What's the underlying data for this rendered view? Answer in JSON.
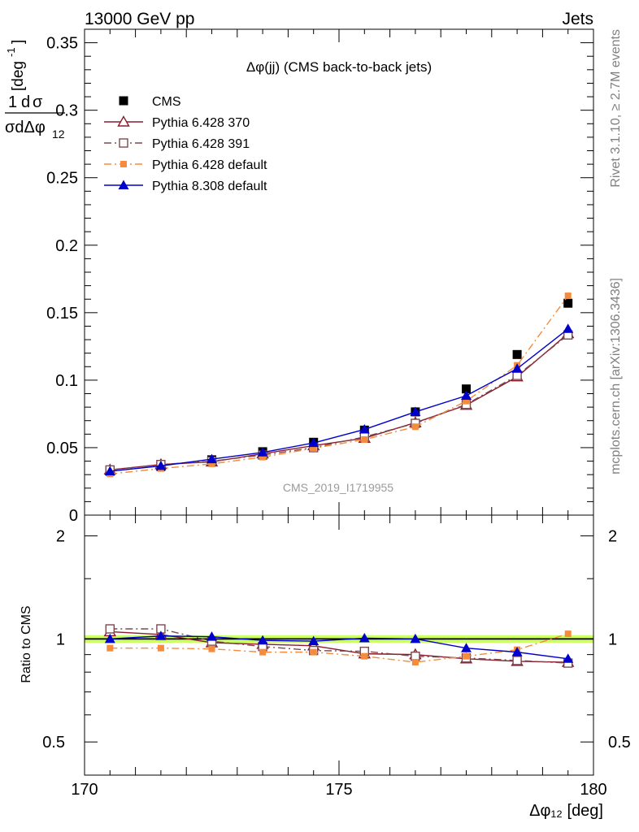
{
  "header": {
    "left": "13000 GeV pp",
    "right": "Jets"
  },
  "side": {
    "rivet": "Rivet 3.1.10, ≥ 2.7M events",
    "mcplots": "mcplots.cern.ch [arXiv:1306.3436]"
  },
  "chart_data": [
    {
      "type": "scatter",
      "title": "Δφ(jj) (CMS back-to-back jets)",
      "watermark": "CMS_2019_I1719955",
      "ylabel": "1/σ dσ/dΔφ₁₂ [deg⁻¹]",
      "ylim": [
        0,
        0.36
      ],
      "xlim": [
        170,
        180
      ],
      "ytick_labels": [
        "0",
        "0.05",
        "0.1",
        "0.15",
        "0.2",
        "0.25",
        "0.3",
        "0.35"
      ],
      "ytick_values": [
        0,
        0.05,
        0.1,
        0.15,
        0.2,
        0.25,
        0.3,
        0.35
      ],
      "legend_position": "top-left",
      "x": [
        170.5,
        171.5,
        172.5,
        173.5,
        174.5,
        175.5,
        176.5,
        177.5,
        178.5,
        179.5
      ],
      "series": [
        {
          "name": "CMS",
          "color": "#000000",
          "marker": "square-filled",
          "line": "none",
          "values": [
            0.0325,
            0.036,
            0.041,
            0.047,
            0.054,
            0.063,
            0.0765,
            0.0935,
            0.119,
            0.157
          ]
        },
        {
          "name": "Pythia 6.428 370",
          "color": "#8b1a2b",
          "marker": "triangle-open",
          "line": "solid",
          "values": [
            0.0335,
            0.0375,
            0.0395,
            0.0455,
            0.0515,
            0.057,
            0.0685,
            0.0815,
            0.1025,
            0.1345
          ]
        },
        {
          "name": "Pythia 6.428 391",
          "color": "#7a4a50",
          "marker": "square-open",
          "line": "dashdot",
          "values": [
            0.0335,
            0.0375,
            0.04,
            0.0445,
            0.05,
            0.058,
            0.068,
            0.082,
            0.1035,
            0.1335
          ]
        },
        {
          "name": "Pythia 6.428 default",
          "color": "#f58b3c",
          "marker": "square-filled-small",
          "line": "dashdot",
          "values": [
            0.0305,
            0.0345,
            0.038,
            0.043,
            0.0495,
            0.056,
            0.0655,
            0.0845,
            0.111,
            0.1625
          ]
        },
        {
          "name": "Pythia 8.308 default",
          "color": "#0000cc",
          "marker": "triangle-filled",
          "line": "solid",
          "values": [
            0.0325,
            0.0365,
            0.0415,
            0.0465,
            0.0535,
            0.0635,
            0.0765,
            0.0885,
            0.1085,
            0.138
          ]
        }
      ]
    },
    {
      "type": "scatter",
      "ylabel": "Ratio to CMS",
      "xlabel": "Δφ₁₂ [deg]",
      "ylim": [
        0.4,
        2.3
      ],
      "y_scale": "log",
      "xlim": [
        170,
        180
      ],
      "xtick_labels": [
        "170",
        "175",
        "180"
      ],
      "xtick_values": [
        170,
        175,
        180
      ],
      "ytick_labels": [
        "0.5",
        "1",
        "2"
      ],
      "ytick_values": [
        0.5,
        1,
        2
      ],
      "band": {
        "low": 0.975,
        "high": 1.025,
        "color": "#ccff66"
      },
      "x": [
        170.5,
        171.5,
        172.5,
        173.5,
        174.5,
        175.5,
        176.5,
        177.5,
        178.5,
        179.5
      ],
      "series": [
        {
          "name": "Pythia 6.428 370",
          "color": "#8b1a2b",
          "marker": "triangle-open",
          "line": "solid",
          "values": [
            1.05,
            1.03,
            0.975,
            0.965,
            0.955,
            0.905,
            0.9,
            0.875,
            0.86,
            0.855
          ]
        },
        {
          "name": "Pythia 6.428 391",
          "color": "#7a4a50",
          "marker": "square-open",
          "line": "dashdot",
          "values": [
            1.07,
            1.07,
            0.985,
            0.95,
            0.925,
            0.92,
            0.89,
            0.88,
            0.865,
            0.85
          ]
        },
        {
          "name": "Pythia 6.428 default",
          "color": "#f58b3c",
          "marker": "square-filled-small",
          "line": "dashdot",
          "values": [
            0.94,
            0.94,
            0.935,
            0.915,
            0.915,
            0.89,
            0.855,
            0.89,
            0.93,
            1.035
          ]
        },
        {
          "name": "Pythia 8.308 default",
          "color": "#0000cc",
          "marker": "triangle-filled",
          "line": "solid",
          "values": [
            1.0,
            1.02,
            1.015,
            0.99,
            0.985,
            1.005,
            1.0,
            0.94,
            0.915,
            0.875
          ]
        }
      ]
    }
  ]
}
